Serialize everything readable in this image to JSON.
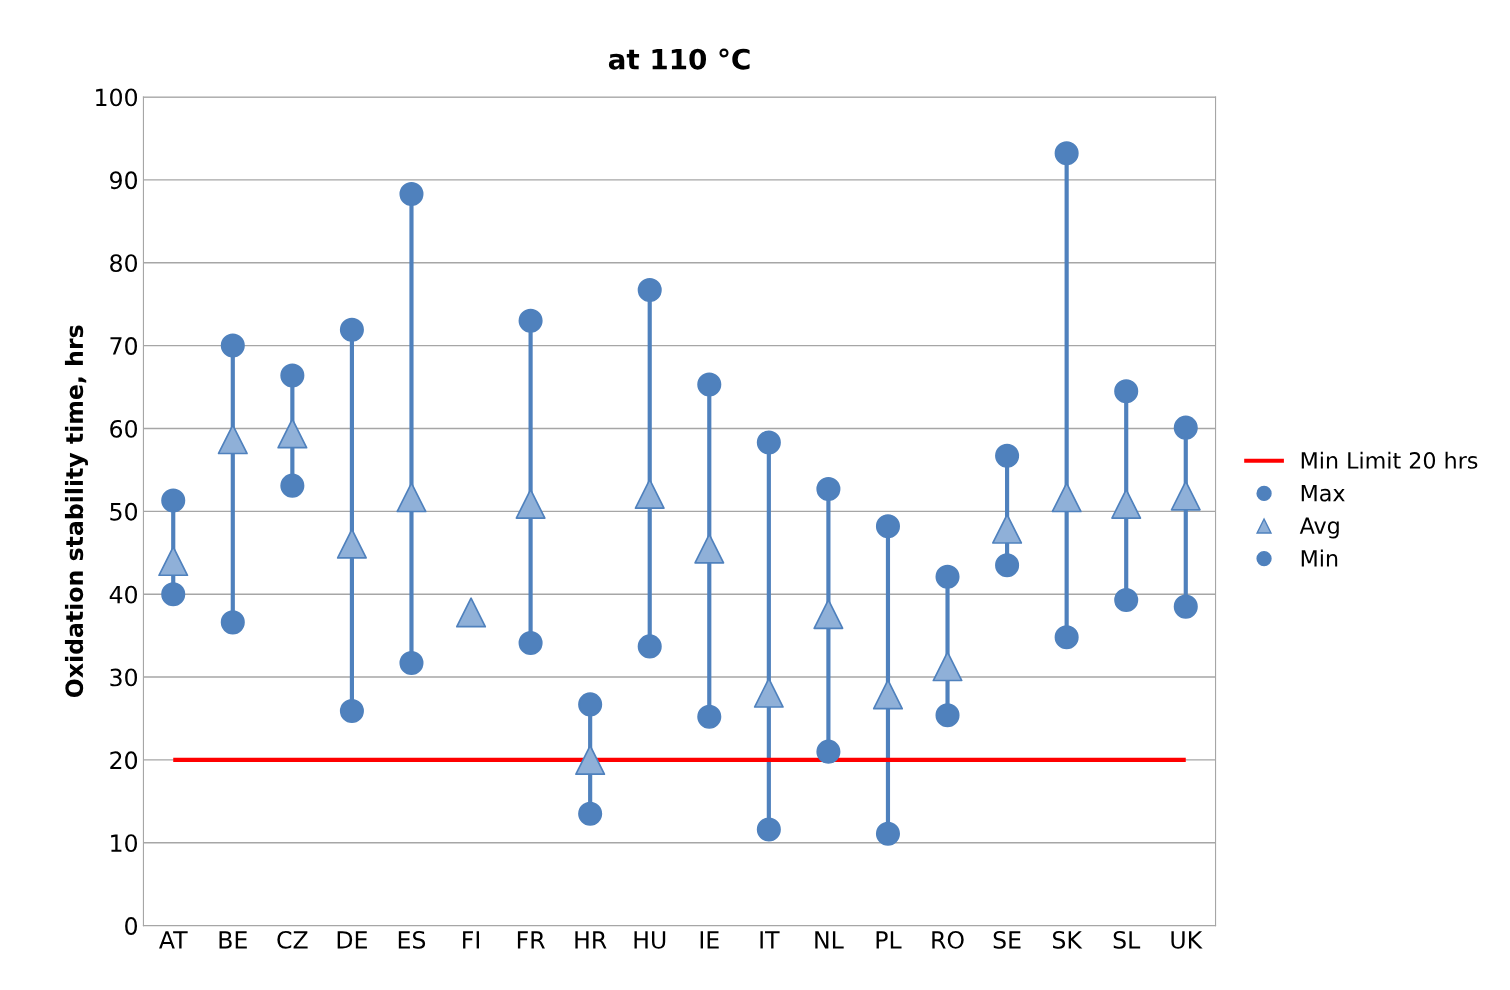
{
  "chart_data": {
    "type": "scatter",
    "title": "at 110 °C",
    "ylabel": "Oxidation stability time, hrs",
    "categories": [
      "AT",
      "BE",
      "CZ",
      "DE",
      "ES",
      "FI",
      "FR",
      "HR",
      "HU",
      "IE",
      "IT",
      "NL",
      "PL",
      "RO",
      "SE",
      "SK",
      "SL",
      "UK"
    ],
    "series": [
      {
        "name": "Max",
        "color": "#4f81bd",
        "marker": "circle",
        "values": [
          51.3,
          70.0,
          66.4,
          71.9,
          88.3,
          null,
          73.0,
          26.7,
          76.7,
          65.3,
          58.3,
          52.7,
          48.2,
          42.1,
          56.7,
          93.2,
          64.5,
          60.1
        ]
      },
      {
        "name": "Avg",
        "color": "#8fb0d8",
        "marker": "triangle",
        "values": [
          44.0,
          58.7,
          59.4,
          46.1,
          51.7,
          37.8,
          50.9,
          20.0,
          52.1,
          45.5,
          28.1,
          37.6,
          27.9,
          31.3,
          47.9,
          51.7,
          50.9,
          51.9
        ]
      },
      {
        "name": "Min",
        "color": "#4f81bd",
        "marker": "circle",
        "values": [
          40.0,
          36.6,
          53.1,
          25.9,
          31.7,
          null,
          34.1,
          13.5,
          33.7,
          25.2,
          11.6,
          21.0,
          11.1,
          25.4,
          43.5,
          34.8,
          39.3,
          38.5
        ]
      }
    ],
    "ref_lines": [
      {
        "axis": "y",
        "value": 20,
        "label": "Min Limit 20 hrs",
        "color": "#ff0000"
      }
    ],
    "ylim": [
      0,
      100
    ],
    "yticks": [
      0,
      10,
      20,
      30,
      40,
      50,
      60,
      70,
      80,
      90,
      100
    ],
    "grid": "y",
    "legend": "right"
  }
}
